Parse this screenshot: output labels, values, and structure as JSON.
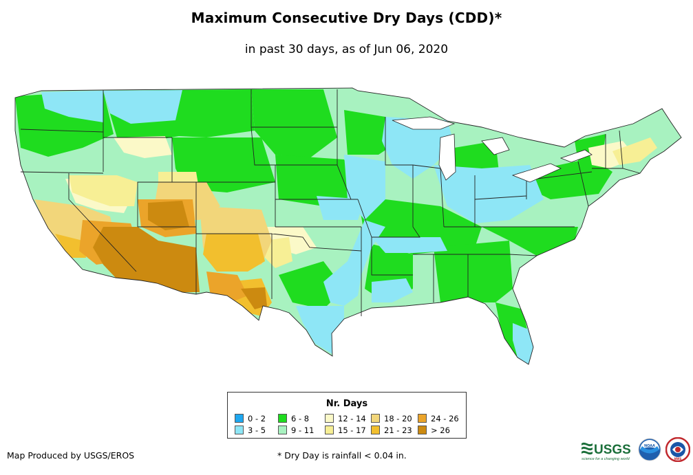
{
  "header": {
    "title": "Maximum Consecutive Dry Days (CDD)*",
    "subtitle": "in past 30 days, as of Jun 06, 2020"
  },
  "legend": {
    "title": "Nr. Days",
    "items": [
      {
        "label": "0 - 2",
        "color": "#1ea7f0"
      },
      {
        "label": "3 - 5",
        "color": "#8ee6f6"
      },
      {
        "label": "6 - 8",
        "color": "#1fdc1f"
      },
      {
        "label": "9 - 11",
        "color": "#a8f2c0"
      },
      {
        "label": "12 - 14",
        "color": "#fbf9c8"
      },
      {
        "label": "15 - 17",
        "color": "#f7ef95"
      },
      {
        "label": "18 - 20",
        "color": "#f2d67a"
      },
      {
        "label": "21 - 23",
        "color": "#f2bf2e"
      },
      {
        "label": "24 - 26",
        "color": "#eba42a"
      },
      {
        "label": "> 26",
        "color": "#cc8a10"
      }
    ]
  },
  "footer": {
    "credit": "Map Produced by USGS/EROS",
    "footnote": "* Dry Day is rainfall < 0.04 in.",
    "logos": [
      {
        "name": "usgs-logo",
        "text": "USGS",
        "tagline": "science for a changing world"
      },
      {
        "name": "noaa-logo",
        "text": "NOAA"
      },
      {
        "name": "nws-logo",
        "text": "NWS"
      }
    ]
  }
}
